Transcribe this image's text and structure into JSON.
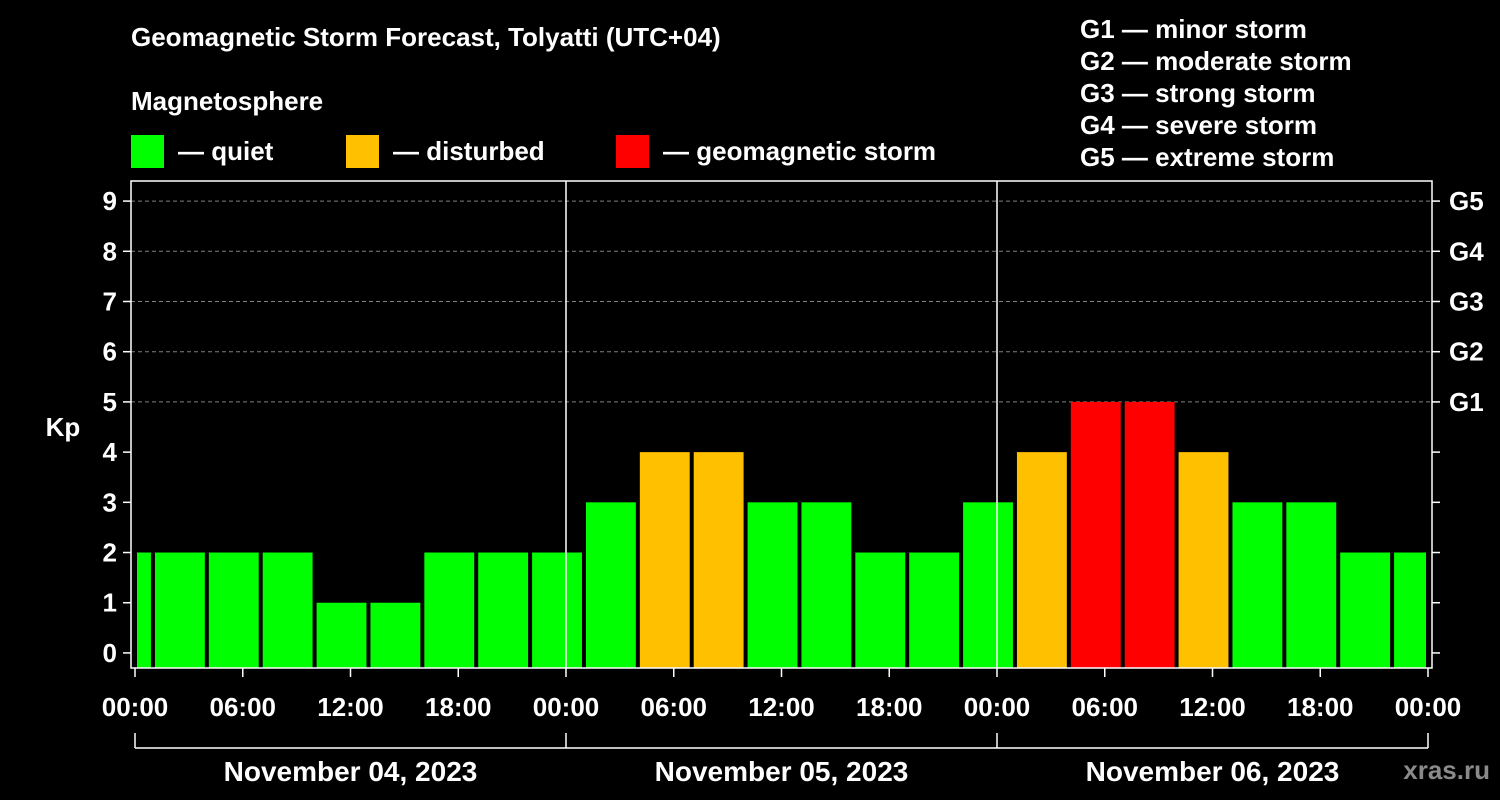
{
  "title": "Geomagnetic Storm Forecast, Tolyatti (UTC+04)",
  "subtitle": "Magnetosphere",
  "legend": [
    {
      "label": "— quiet",
      "color": "#00ff00"
    },
    {
      "label": "— disturbed",
      "color": "#ffc000"
    },
    {
      "label": "— geomagnetic storm",
      "color": "#ff0000"
    }
  ],
  "g_scale": [
    "G1 — minor storm",
    "G2 — moderate storm",
    "G3 — strong storm",
    "G4 — severe storm",
    "G5 — extreme storm"
  ],
  "watermark": "xras.ru",
  "chart_data": {
    "type": "bar",
    "ylabel": "Kp",
    "ylim": [
      -0.3,
      9.4
    ],
    "y_ticks": [
      0,
      1,
      2,
      3,
      4,
      5,
      6,
      7,
      8,
      9
    ],
    "right_ticks": [
      {
        "value": 5,
        "label": "G1"
      },
      {
        "value": 6,
        "label": "G2"
      },
      {
        "value": 7,
        "label": "G3"
      },
      {
        "value": 8,
        "label": "G4"
      },
      {
        "value": 9,
        "label": "G5"
      }
    ],
    "grid": "dashed horizontal lines at Kp 5-9",
    "x_hours_range": [
      0,
      72
    ],
    "x_tick_labels": [
      "00:00",
      "06:00",
      "12:00",
      "18:00",
      "00:00",
      "06:00",
      "12:00",
      "18:00",
      "00:00",
      "06:00",
      "12:00",
      "18:00",
      "00:00"
    ],
    "days": [
      "November 04, 2023",
      "November 05, 2023",
      "November 06, 2023"
    ],
    "bars": [
      {
        "start": 0,
        "end": 1,
        "kp": 2
      },
      {
        "start": 1,
        "end": 4,
        "kp": 2
      },
      {
        "start": 4,
        "end": 7,
        "kp": 2
      },
      {
        "start": 7,
        "end": 10,
        "kp": 2
      },
      {
        "start": 10,
        "end": 13,
        "kp": 1
      },
      {
        "start": 13,
        "end": 16,
        "kp": 1
      },
      {
        "start": 16,
        "end": 19,
        "kp": 2
      },
      {
        "start": 19,
        "end": 22,
        "kp": 2
      },
      {
        "start": 22,
        "end": 25,
        "kp": 2
      },
      {
        "start": 25,
        "end": 28,
        "kp": 3
      },
      {
        "start": 28,
        "end": 31,
        "kp": 4
      },
      {
        "start": 31,
        "end": 34,
        "kp": 4
      },
      {
        "start": 34,
        "end": 37,
        "kp": 3
      },
      {
        "start": 37,
        "end": 40,
        "kp": 3
      },
      {
        "start": 40,
        "end": 43,
        "kp": 2
      },
      {
        "start": 43,
        "end": 46,
        "kp": 2
      },
      {
        "start": 46,
        "end": 49,
        "kp": 3
      },
      {
        "start": 49,
        "end": 52,
        "kp": 4
      },
      {
        "start": 52,
        "end": 55,
        "kp": 5
      },
      {
        "start": 55,
        "end": 58,
        "kp": 5
      },
      {
        "start": 58,
        "end": 61,
        "kp": 4
      },
      {
        "start": 61,
        "end": 64,
        "kp": 3
      },
      {
        "start": 64,
        "end": 67,
        "kp": 3
      },
      {
        "start": 67,
        "end": 70,
        "kp": 2
      },
      {
        "start": 70,
        "end": 72,
        "kp": 2
      }
    ],
    "colors": {
      "quiet": "#00ff00",
      "disturbed": "#ffc000",
      "storm": "#ff0000"
    }
  }
}
